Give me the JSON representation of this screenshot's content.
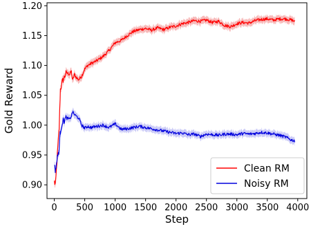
{
  "chart_data": {
    "type": "line",
    "xlabel": "Step",
    "ylabel": "Gold Reward",
    "xlim": [
      -120,
      4150
    ],
    "ylim": [
      0.877,
      1.205
    ],
    "xticks": [
      0,
      500,
      1000,
      1500,
      2000,
      2500,
      3000,
      3500,
      4000
    ],
    "xtick_labels": [
      "0",
      "500",
      "1000",
      "1500",
      "2000",
      "2500",
      "3000",
      "3500",
      "4000"
    ],
    "yticks": [
      0.9,
      0.95,
      1.0,
      1.05,
      1.1,
      1.15,
      1.2
    ],
    "ytick_labels": [
      "0.90",
      "0.95",
      "1.00",
      "1.05",
      "1.10",
      "1.15",
      "1.20"
    ],
    "grid": false,
    "legend_position": "lower right",
    "series": [
      {
        "name": "Clean RM",
        "color": "#ff0000",
        "band_color": "#f4a3a3",
        "band_halfwidth": 0.006,
        "x": [
          0,
          20,
          50,
          80,
          100,
          130,
          160,
          200,
          250,
          280,
          300,
          330,
          360,
          400,
          450,
          500,
          550,
          600,
          700,
          800,
          900,
          1000,
          1100,
          1200,
          1300,
          1400,
          1500,
          1600,
          1700,
          1800,
          1900,
          2000,
          2100,
          2200,
          2300,
          2400,
          2500,
          2600,
          2700,
          2800,
          2900,
          3000,
          3100,
          3200,
          3300,
          3400,
          3500,
          3600,
          3700,
          3800,
          3900,
          3950
        ],
        "values": [
          0.905,
          0.9,
          0.95,
          0.995,
          1.06,
          1.072,
          1.08,
          1.088,
          1.085,
          1.09,
          1.075,
          1.085,
          1.08,
          1.076,
          1.082,
          1.094,
          1.1,
          1.103,
          1.108,
          1.115,
          1.125,
          1.138,
          1.142,
          1.15,
          1.157,
          1.16,
          1.162,
          1.159,
          1.163,
          1.16,
          1.164,
          1.166,
          1.17,
          1.172,
          1.175,
          1.174,
          1.176,
          1.172,
          1.174,
          1.167,
          1.165,
          1.17,
          1.172,
          1.171,
          1.175,
          1.177,
          1.178,
          1.176,
          1.178,
          1.178,
          1.176,
          1.174
        ]
      },
      {
        "name": "Noisy RM",
        "color": "#0000dd",
        "band_color": "#b9b9f4",
        "band_halfwidth": 0.006,
        "x": [
          0,
          20,
          50,
          80,
          100,
          130,
          160,
          200,
          250,
          280,
          300,
          330,
          360,
          400,
          450,
          500,
          550,
          600,
          700,
          800,
          900,
          1000,
          1100,
          1200,
          1300,
          1400,
          1500,
          1600,
          1700,
          1800,
          1900,
          2000,
          2100,
          2200,
          2300,
          2400,
          2500,
          2600,
          2700,
          2800,
          2900,
          3000,
          3100,
          3200,
          3300,
          3400,
          3500,
          3600,
          3700,
          3800,
          3900,
          3950
        ],
        "values": [
          0.93,
          0.925,
          0.945,
          0.96,
          0.99,
          1.005,
          1.008,
          1.012,
          1.01,
          1.015,
          1.022,
          1.018,
          1.015,
          1.012,
          1.0,
          0.995,
          0.998,
          0.996,
          0.998,
          1.0,
          0.996,
          1.002,
          0.993,
          0.994,
          0.996,
          0.998,
          0.996,
          0.994,
          0.992,
          0.99,
          0.988,
          0.986,
          0.987,
          0.984,
          0.985,
          0.981,
          0.985,
          0.984,
          0.983,
          0.985,
          0.985,
          0.984,
          0.986,
          0.985,
          0.986,
          0.988,
          0.987,
          0.985,
          0.983,
          0.98,
          0.975,
          0.974
        ]
      }
    ]
  }
}
